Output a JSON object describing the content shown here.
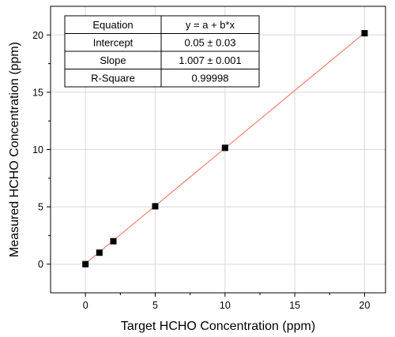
{
  "chart_data": {
    "type": "scatter",
    "title": "",
    "xlabel": "Target HCHO Concentration (ppm)",
    "ylabel": "Measured HCHO Concentration (ppm)",
    "xlim": [
      -2.5,
      21.5
    ],
    "ylim": [
      -2.5,
      22.5
    ],
    "xticks": [
      0,
      5,
      10,
      15,
      20
    ],
    "yticks": [
      0,
      5,
      10,
      15,
      20
    ],
    "grid": true,
    "series": [
      {
        "x": [
          0,
          1,
          2,
          5,
          10,
          20
        ],
        "y": [
          0,
          1.0,
          2.0,
          5.05,
          10.15,
          20.15
        ],
        "marker": "square",
        "color": "#000000"
      }
    ],
    "fit": {
      "intercept": 0.05,
      "slope": 1.007,
      "x_range": [
        0,
        20
      ],
      "color": "#f08070"
    },
    "fit_table": {
      "rows": [
        [
          "Equation",
          "y = a + b*x"
        ],
        [
          "Intercept",
          "0.05 ± 0.03"
        ],
        [
          "Slope",
          "1.007 ± 0.001"
        ],
        [
          "R-Square",
          "0.99998"
        ]
      ]
    }
  }
}
